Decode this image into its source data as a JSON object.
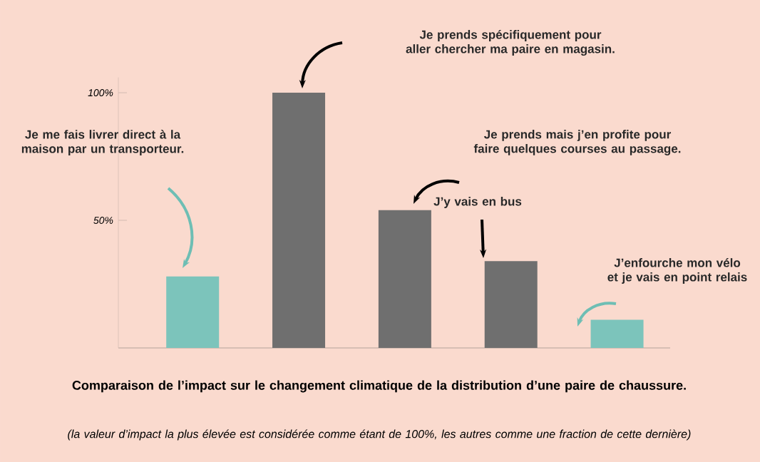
{
  "chart_data": {
    "type": "bar",
    "title": "Comparaison de l’impact sur le changement climatique de la distribution d’une paire de chaussure.",
    "subtitle": "(la valeur d’impact la plus élevée est considérée comme étant de 100%, les autres comme une fraction de cette dernière)",
    "categories": [
      null,
      null,
      null,
      null,
      null
    ],
    "values": [
      28,
      100,
      54,
      34,
      11
    ],
    "colors": [
      "#7cc4bb",
      "#6f6f6f",
      "#6f6f6f",
      "#6f6f6f",
      "#7cc4bb"
    ],
    "ylim": [
      0,
      106
    ],
    "yticks": [
      {
        "value": 50,
        "label": "50%"
      },
      {
        "value": 100,
        "label": "100%"
      }
    ],
    "tick_labels": "y",
    "annotations": [
      "Je me fais livrer direct à la maison par un transporteur.",
      "Je prends spécifiquement pour aller chercher ma paire en magasin.",
      "Je prends mais j’en profite pour faire quelques courses au passage.",
      "J’y vais en bus",
      "J’enfourche mon vélo et je vais en point relais"
    ]
  }
}
